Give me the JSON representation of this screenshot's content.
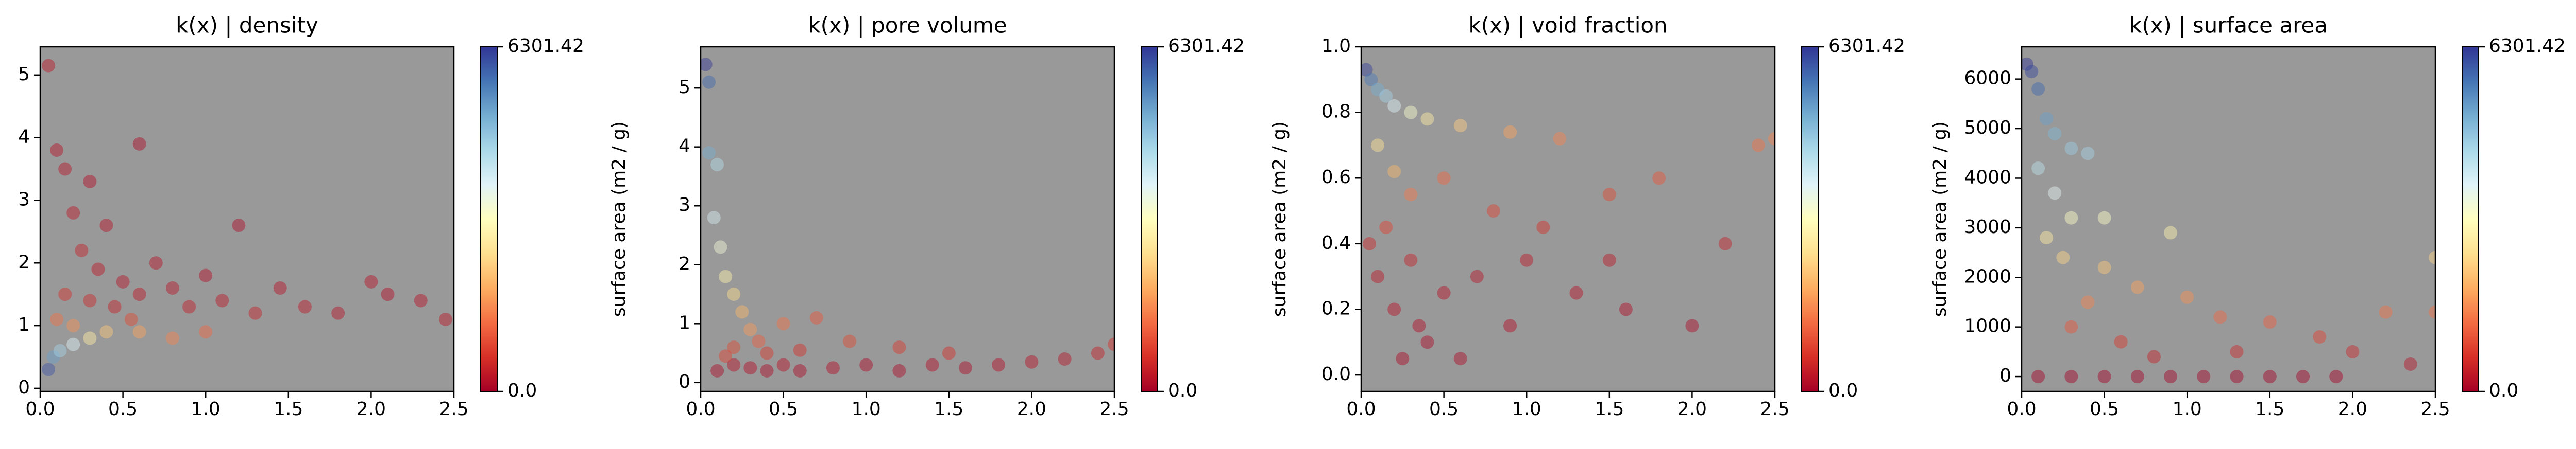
{
  "chart_data": [
    {
      "type": "scatter",
      "title": "k(x) | density",
      "colorbar_label": "surface area (m2 / g)",
      "xlim": [
        0,
        2.5
      ],
      "ylim": [
        -0.05,
        5.45
      ],
      "clim": [
        0,
        6301.42
      ],
      "xticks": [
        {
          "value": 0,
          "label": "0.0"
        },
        {
          "value": 0.5,
          "label": "0.5"
        },
        {
          "value": 1,
          "label": "1.0"
        },
        {
          "value": 1.5,
          "label": "1.5"
        },
        {
          "value": 2,
          "label": "2.0"
        },
        {
          "value": 2.5,
          "label": "2.5"
        }
      ],
      "yticks": [
        0,
        1,
        2,
        3,
        4,
        5
      ],
      "cticks": [
        {
          "value": 0,
          "label": "0.0"
        },
        6301.42
      ],
      "background": "#999999",
      "alpha": 0.45,
      "colormap": [
        "#a50026",
        "#d73027",
        "#f46d43",
        "#fdae61",
        "#fee090",
        "#ffffbf",
        "#e0f3f8",
        "#abd9e9",
        "#74add1",
        "#4575b4",
        "#313695"
      ],
      "x": [
        0.05,
        0.1,
        0.15,
        0.3,
        0.6,
        0.2,
        0.4,
        0.25,
        0.35,
        0.5,
        0.15,
        0.3,
        0.45,
        0.6,
        0.7,
        0.8,
        0.9,
        1.0,
        1.1,
        1.2,
        1.3,
        1.45,
        1.6,
        1.8,
        2.0,
        2.1,
        2.3,
        2.45,
        0.05,
        0.08,
        0.12,
        0.2,
        0.3,
        0.4,
        0.6,
        0.8,
        1.0,
        0.2,
        0.1,
        0.55
      ],
      "y": [
        5.15,
        3.8,
        3.5,
        3.3,
        3.9,
        2.8,
        2.6,
        2.2,
        1.9,
        1.7,
        1.5,
        1.4,
        1.3,
        1.5,
        2.0,
        1.6,
        1.3,
        1.8,
        1.4,
        2.6,
        1.2,
        1.6,
        1.3,
        1.2,
        1.7,
        1.5,
        1.4,
        1.1,
        0.3,
        0.5,
        0.6,
        0.7,
        0.8,
        0.9,
        0.9,
        0.8,
        0.9,
        1.0,
        1.1,
        1.1
      ],
      "c": [
        300,
        200,
        250,
        150,
        100,
        300,
        200,
        400,
        300,
        250,
        600,
        500,
        400,
        300,
        200,
        250,
        350,
        150,
        300,
        100,
        400,
        200,
        300,
        250,
        200,
        150,
        200,
        300,
        6000,
        5200,
        4500,
        3800,
        2800,
        2200,
        1800,
        1500,
        1200,
        1600,
        1300,
        900
      ]
    },
    {
      "type": "scatter",
      "title": "k(x) | pore volume",
      "colorbar_label": "surface area (m2 / g)",
      "xlim": [
        0,
        2.5
      ],
      "ylim": [
        -0.15,
        5.7
      ],
      "clim": [
        0,
        6301.42
      ],
      "xticks": [
        {
          "value": 0,
          "label": "0.0"
        },
        {
          "value": 0.5,
          "label": "0.5"
        },
        {
          "value": 1,
          "label": "1.0"
        },
        {
          "value": 1.5,
          "label": "1.5"
        },
        {
          "value": 2,
          "label": "2.0"
        },
        {
          "value": 2.5,
          "label": "2.5"
        }
      ],
      "yticks": [
        0,
        1,
        2,
        3,
        4,
        5
      ],
      "cticks": [
        {
          "value": 0,
          "label": "0.0"
        },
        6301.42
      ],
      "background": "#999999",
      "alpha": 0.45,
      "colormap": [
        "#a50026",
        "#d73027",
        "#f46d43",
        "#fdae61",
        "#fee090",
        "#ffffbf",
        "#e0f3f8",
        "#abd9e9",
        "#74add1",
        "#4575b4",
        "#313695"
      ],
      "x": [
        0.03,
        0.05,
        0.05,
        0.1,
        0.08,
        0.12,
        0.15,
        0.2,
        0.25,
        0.3,
        0.5,
        0.7,
        0.9,
        1.2,
        1.5,
        0.1,
        0.2,
        0.3,
        0.4,
        0.5,
        0.6,
        0.8,
        1.0,
        1.2,
        1.4,
        1.6,
        1.8,
        2.0,
        2.2,
        2.4,
        2.5,
        0.2,
        0.4,
        0.15,
        0.6,
        0.35
      ],
      "y": [
        5.4,
        5.1,
        3.9,
        3.7,
        2.8,
        2.3,
        1.8,
        1.5,
        1.2,
        0.9,
        1.0,
        1.1,
        0.7,
        0.6,
        0.5,
        0.2,
        0.3,
        0.25,
        0.2,
        0.3,
        0.2,
        0.25,
        0.3,
        0.2,
        0.3,
        0.25,
        0.3,
        0.35,
        0.4,
        0.5,
        0.65,
        0.6,
        0.5,
        0.45,
        0.55,
        0.7
      ],
      "c": [
        6300,
        5800,
        5000,
        4300,
        3900,
        3400,
        2900,
        2500,
        2000,
        1700,
        1300,
        1000,
        900,
        700,
        600,
        100,
        200,
        150,
        100,
        200,
        100,
        150,
        120,
        100,
        150,
        100,
        150,
        200,
        250,
        400,
        600,
        900,
        700,
        800,
        600,
        1100
      ]
    },
    {
      "type": "scatter",
      "title": "k(x) | void fraction",
      "colorbar_label": "surface area (m2 / g)",
      "xlim": [
        0,
        2.5
      ],
      "ylim": [
        -0.05,
        1.0
      ],
      "clim": [
        0,
        6301.42
      ],
      "xticks": [
        {
          "value": 0,
          "label": "0.0"
        },
        {
          "value": 0.5,
          "label": "0.5"
        },
        {
          "value": 1,
          "label": "1.0"
        },
        {
          "value": 1.5,
          "label": "1.5"
        },
        {
          "value": 2,
          "label": "2.0"
        },
        {
          "value": 2.5,
          "label": "2.5"
        }
      ],
      "yticks": [
        {
          "value": 0,
          "label": "0.0"
        },
        0.2,
        0.4,
        0.6,
        0.8,
        {
          "value": 1,
          "label": "1.0"
        }
      ],
      "cticks": [
        {
          "value": 0,
          "label": "0.0"
        },
        6301.42
      ],
      "background": "#999999",
      "alpha": 0.45,
      "colormap": [
        "#a50026",
        "#d73027",
        "#f46d43",
        "#fdae61",
        "#fee090",
        "#ffffbf",
        "#e0f3f8",
        "#abd9e9",
        "#74add1",
        "#4575b4",
        "#313695"
      ],
      "x": [
        0.03,
        0.06,
        0.1,
        0.15,
        0.2,
        0.3,
        0.4,
        0.6,
        0.9,
        1.2,
        2.5,
        2.4,
        1.8,
        1.5,
        0.1,
        0.2,
        0.3,
        0.5,
        0.8,
        1.1,
        0.15,
        0.3,
        0.1,
        0.2,
        0.35,
        0.5,
        0.7,
        0.9,
        1.0,
        1.3,
        1.6,
        2.0,
        0.25,
        0.4,
        0.05,
        0.6,
        1.5,
        2.2
      ],
      "y": [
        0.93,
        0.9,
        0.87,
        0.85,
        0.82,
        0.8,
        0.78,
        0.76,
        0.74,
        0.72,
        0.72,
        0.7,
        0.6,
        0.55,
        0.7,
        0.62,
        0.55,
        0.6,
        0.5,
        0.45,
        0.45,
        0.35,
        0.3,
        0.2,
        0.15,
        0.25,
        0.3,
        0.15,
        0.35,
        0.25,
        0.2,
        0.15,
        0.05,
        0.1,
        0.4,
        0.05,
        0.35,
        0.4
      ],
      "c": [
        6200,
        5600,
        5000,
        4500,
        3800,
        3300,
        2800,
        2300,
        1800,
        1500,
        1500,
        1300,
        1000,
        900,
        2600,
        2000,
        1400,
        1200,
        800,
        600,
        800,
        400,
        300,
        200,
        150,
        200,
        250,
        150,
        300,
        200,
        150,
        100,
        100,
        100,
        500,
        100,
        300,
        400
      ]
    },
    {
      "type": "scatter",
      "title": "k(x) | surface area",
      "colorbar_label": "surface area (m2 / g)",
      "xlim": [
        0,
        2.5
      ],
      "ylim": [
        -300,
        6650
      ],
      "clim": [
        0,
        6301.42
      ],
      "xticks": [
        {
          "value": 0,
          "label": "0.0"
        },
        {
          "value": 0.5,
          "label": "0.5"
        },
        {
          "value": 1,
          "label": "1.0"
        },
        {
          "value": 1.5,
          "label": "1.5"
        },
        {
          "value": 2,
          "label": "2.0"
        },
        {
          "value": 2.5,
          "label": "2.5"
        }
      ],
      "yticks": [
        0,
        1000,
        2000,
        3000,
        4000,
        5000,
        6000
      ],
      "cticks": [
        {
          "value": 0,
          "label": "0.0"
        },
        6301.42
      ],
      "background": "#999999",
      "alpha": 0.45,
      "colormap": [
        "#a50026",
        "#d73027",
        "#f46d43",
        "#fdae61",
        "#fee090",
        "#ffffbf",
        "#e0f3f8",
        "#abd9e9",
        "#74add1",
        "#4575b4",
        "#313695"
      ],
      "x": [
        0.03,
        0.06,
        0.1,
        0.15,
        0.2,
        0.3,
        0.4,
        0.1,
        0.2,
        0.3,
        0.5,
        0.9,
        0.15,
        0.25,
        0.5,
        0.7,
        0.4,
        1.0,
        1.2,
        1.5,
        2.5,
        2.5,
        2.2,
        1.8,
        2.0,
        0.3,
        0.6,
        0.8,
        1.3,
        0.1,
        0.3,
        0.5,
        0.7,
        0.9,
        1.1,
        1.3,
        1.5,
        1.7,
        1.9,
        2.35
      ],
      "y": [
        6300,
        6150,
        5800,
        5200,
        4900,
        4600,
        4500,
        4200,
        3700,
        3200,
        3200,
        2900,
        2800,
        2400,
        2200,
        1800,
        1500,
        1600,
        1200,
        1100,
        2400,
        1300,
        1300,
        800,
        500,
        1000,
        700,
        400,
        500,
        0,
        0,
        0,
        0,
        0,
        0,
        0,
        0,
        0,
        0,
        250
      ],
      "c": [
        6300,
        6150,
        5800,
        5200,
        4900,
        4600,
        4500,
        4200,
        3700,
        3200,
        3200,
        2900,
        2800,
        2400,
        2200,
        1800,
        1500,
        1600,
        1200,
        1100,
        2400,
        1300,
        1300,
        800,
        500,
        1000,
        700,
        400,
        500,
        0,
        0,
        0,
        0,
        0,
        0,
        0,
        0,
        0,
        0,
        250
      ]
    }
  ]
}
